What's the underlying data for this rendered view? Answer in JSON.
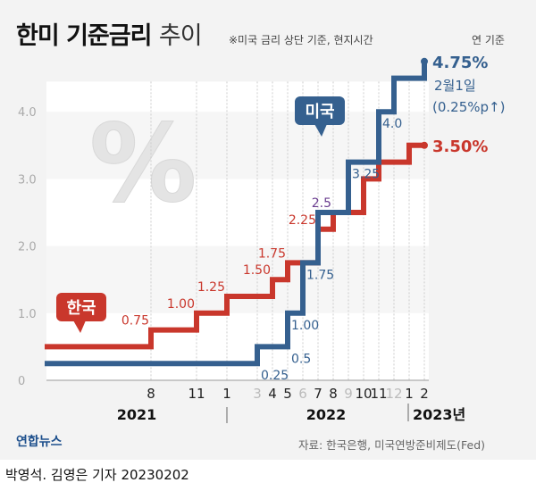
{
  "header": {
    "title_bold": "한미 기준금리",
    "title_light": "추이",
    "note": "※미국 금리 상단 기준, 현지시간",
    "unit": "연 기준"
  },
  "footer": {
    "source": "자료: 한국은행, 미국연방준비제도(Fed)",
    "logo": "연합뉴스",
    "credit": "박영석. 김영은 기자  20230202"
  },
  "colors": {
    "korea": "#c9372c",
    "us": "#35608f",
    "shared": "#6a3d8f"
  },
  "chart_data": {
    "type": "line",
    "step": true,
    "ylim": [
      0,
      4.8
    ],
    "yticks": [
      "0",
      "1.0",
      "2.0",
      "3.0",
      "4.0"
    ],
    "xticks": [
      {
        "m": 8,
        "label": "8"
      },
      {
        "m": 11,
        "label": "11"
      },
      {
        "m": 13,
        "label": "1"
      },
      {
        "m": 15,
        "label": "3",
        "muted": true
      },
      {
        "m": 16,
        "label": "4"
      },
      {
        "m": 17,
        "label": "5"
      },
      {
        "m": 18,
        "label": "6",
        "muted": true
      },
      {
        "m": 19,
        "label": "7"
      },
      {
        "m": 20,
        "label": "8"
      },
      {
        "m": 21,
        "label": "9",
        "muted": true
      },
      {
        "m": 22,
        "label": "10"
      },
      {
        "m": 23,
        "label": "11"
      },
      {
        "m": 24,
        "label": "12",
        "muted": true
      },
      {
        "m": 25,
        "label": "1"
      },
      {
        "m": 26,
        "label": "2"
      }
    ],
    "years": [
      "2021",
      "2022",
      "2023년"
    ],
    "series": [
      {
        "name": "한국",
        "points": [
          [
            1,
            0.5
          ],
          [
            8,
            0.75
          ],
          [
            11,
            1.0
          ],
          [
            13,
            1.25
          ],
          [
            16,
            1.5
          ],
          [
            17,
            1.75
          ],
          [
            19,
            2.25
          ],
          [
            20,
            2.5
          ],
          [
            22,
            3.0
          ],
          [
            23,
            3.25
          ],
          [
            25,
            3.5
          ],
          [
            26,
            3.5
          ]
        ],
        "final_label": "3.50%"
      },
      {
        "name": "미국",
        "points": [
          [
            1,
            0.25
          ],
          [
            15,
            0.5
          ],
          [
            17,
            1.0
          ],
          [
            18,
            1.75
          ],
          [
            19,
            2.5
          ],
          [
            21,
            3.25
          ],
          [
            23,
            4.0
          ],
          [
            24,
            4.5
          ],
          [
            26,
            4.75
          ]
        ],
        "final_label": "4.75%",
        "final_date": "2월1일",
        "final_change": "(0.25%p↑)"
      }
    ],
    "annotations": [
      {
        "text": "0.75",
        "series": "korea",
        "m": 8,
        "v": 0.75
      },
      {
        "text": "1.00",
        "series": "korea",
        "m": 11,
        "v": 1.0
      },
      {
        "text": "1.25",
        "series": "korea",
        "m": 13,
        "v": 1.25
      },
      {
        "text": "1.50",
        "series": "korea",
        "m": 16,
        "v": 1.5
      },
      {
        "text": "1.75",
        "series": "korea",
        "m": 17,
        "v": 1.75
      },
      {
        "text": "2.25",
        "series": "korea",
        "m": 19,
        "v": 2.25
      },
      {
        "text": "2.5",
        "series": "shared",
        "m": 20,
        "v": 2.5
      },
      {
        "text": "0.25",
        "series": "us",
        "m": 15,
        "v": 0.25
      },
      {
        "text": "0.5",
        "series": "us",
        "m": 17,
        "v": 0.5
      },
      {
        "text": "1.00",
        "series": "us",
        "m": 17,
        "v": 1.0
      },
      {
        "text": "1.75",
        "series": "us",
        "m": 18,
        "v": 1.75
      },
      {
        "text": "3.25",
        "series": "us",
        "m": 21,
        "v": 3.25
      },
      {
        "text": "4.0",
        "series": "us",
        "m": 23,
        "v": 4.0
      }
    ]
  },
  "decor": {
    "percent_symbol": "%"
  }
}
